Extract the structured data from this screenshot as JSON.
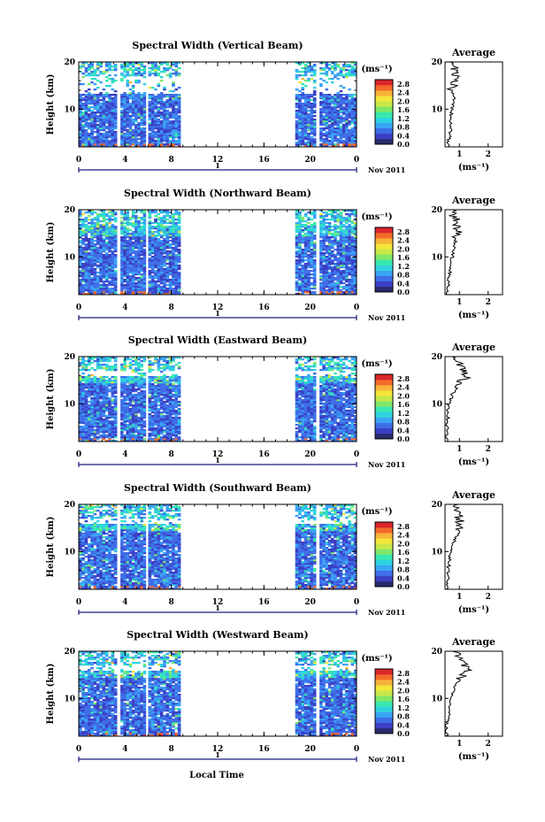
{
  "figure": {
    "xlabel": "Local Time",
    "ylabel": "Height (km)",
    "date_label": "Nov 2011",
    "day_label": "1",
    "cb_unit": "(ms⁻¹)",
    "avg_title": "Average",
    "avg_xlabel": "(ms⁻¹)",
    "x_ticks": [
      "0",
      "4",
      "8",
      "12",
      "16",
      "20",
      "0"
    ],
    "y_ticks": [
      "20",
      "10"
    ],
    "cb_ticks": [
      "2.8",
      "2.4",
      "2.0",
      "1.6",
      "1.2",
      "0.8",
      "0.4",
      "0.0"
    ],
    "avg_x_ticks": [
      "1",
      "2"
    ],
    "colormap": [
      "#2a2a6e",
      "#3b3fc4",
      "#3f6ee8",
      "#3aa5f5",
      "#2fd3e0",
      "#38e8b0",
      "#7fe86a",
      "#c8e84a",
      "#f5e63a",
      "#f7b33a",
      "#f46a2a",
      "#d9262a"
    ]
  },
  "chart_data": [
    {
      "type": "heatmap",
      "title": "Spectral Width (Vertical Beam)",
      "xlabel": "Local Time",
      "ylabel": "Height (km)",
      "colorbar_label": "(ms⁻¹)",
      "x_range_hours": [
        0,
        24
      ],
      "y_range_km": [
        2,
        20
      ],
      "color_range": [
        0.0,
        3.0
      ],
      "data_gaps_hours": [
        [
          3.3,
          3.6
        ],
        [
          5.8,
          6.0
        ],
        [
          8.8,
          18.7
        ],
        [
          20.5,
          20.8
        ]
      ],
      "average_profile": {
        "title": "Average",
        "xlabel": "(ms⁻¹)",
        "xlim": [
          0.5,
          2.5
        ],
        "height_km": [
          2,
          4,
          6,
          8,
          10,
          12,
          14,
          16,
          18,
          20
        ],
        "width": [
          0.6,
          0.65,
          0.7,
          0.7,
          0.75,
          0.8,
          0.75,
          0.8,
          0.85,
          0.8
        ]
      }
    },
    {
      "type": "heatmap",
      "title": "Spectral Width (Northward Beam)",
      "xlabel": "Local Time",
      "ylabel": "Height (km)",
      "colorbar_label": "(ms⁻¹)",
      "x_range_hours": [
        0,
        24
      ],
      "y_range_km": [
        2,
        20
      ],
      "color_range": [
        0.0,
        3.0
      ],
      "data_gaps_hours": [
        [
          3.3,
          3.6
        ],
        [
          5.8,
          6.0
        ],
        [
          8.8,
          18.7
        ],
        [
          20.5,
          20.8
        ]
      ],
      "average_profile": {
        "title": "Average",
        "xlabel": "(ms⁻¹)",
        "xlim": [
          0.5,
          2.5
        ],
        "height_km": [
          2,
          4,
          6,
          8,
          10,
          12,
          14,
          16,
          18,
          20
        ],
        "width": [
          0.55,
          0.6,
          0.65,
          0.7,
          0.75,
          0.8,
          0.9,
          0.95,
          0.85,
          0.75
        ]
      }
    },
    {
      "type": "heatmap",
      "title": "Spectral Width (Eastward Beam)",
      "xlabel": "Local Time",
      "ylabel": "Height (km)",
      "colorbar_label": "(ms⁻¹)",
      "x_range_hours": [
        0,
        24
      ],
      "y_range_km": [
        2,
        20
      ],
      "color_range": [
        0.0,
        3.0
      ],
      "data_gaps_hours": [
        [
          3.3,
          3.6
        ],
        [
          5.8,
          6.0
        ],
        [
          8.8,
          18.7
        ],
        [
          20.5,
          20.8
        ]
      ],
      "average_profile": {
        "title": "Average",
        "xlabel": "(ms⁻¹)",
        "xlim": [
          0.5,
          2.5
        ],
        "height_km": [
          2,
          4,
          6,
          8,
          10,
          12,
          14,
          16,
          18,
          20
        ],
        "width": [
          0.55,
          0.55,
          0.6,
          0.6,
          0.65,
          0.75,
          0.95,
          1.3,
          1.0,
          0.8
        ]
      }
    },
    {
      "type": "heatmap",
      "title": "Spectral Width (Southward Beam)",
      "xlabel": "Local Time",
      "ylabel": "Height (km)",
      "colorbar_label": "(ms⁻¹)",
      "x_range_hours": [
        0,
        24
      ],
      "y_range_km": [
        2,
        20
      ],
      "color_range": [
        0.0,
        3.0
      ],
      "data_gaps_hours": [
        [
          3.3,
          3.6
        ],
        [
          5.8,
          6.0
        ],
        [
          8.8,
          18.7
        ],
        [
          20.5,
          20.8
        ]
      ],
      "average_profile": {
        "title": "Average",
        "xlabel": "(ms⁻¹)",
        "xlim": [
          0.5,
          2.5
        ],
        "height_km": [
          2,
          4,
          6,
          8,
          10,
          12,
          14,
          16,
          18,
          20
        ],
        "width": [
          0.55,
          0.6,
          0.6,
          0.65,
          0.7,
          0.8,
          0.95,
          1.05,
          0.95,
          0.8
        ]
      }
    },
    {
      "type": "heatmap",
      "title": "Spectral Width (Westward Beam)",
      "xlabel": "Local Time",
      "ylabel": "Height (km)",
      "colorbar_label": "(ms⁻¹)",
      "x_range_hours": [
        0,
        24
      ],
      "y_range_km": [
        2,
        20
      ],
      "color_range": [
        0.0,
        3.0
      ],
      "data_gaps_hours": [
        [
          3.3,
          3.6
        ],
        [
          5.8,
          6.0
        ],
        [
          8.8,
          18.7
        ],
        [
          20.5,
          20.8
        ]
      ],
      "average_profile": {
        "title": "Average",
        "xlabel": "(ms⁻¹)",
        "xlim": [
          0.5,
          2.5
        ],
        "height_km": [
          2,
          4,
          6,
          8,
          10,
          12,
          14,
          16,
          18,
          20
        ],
        "width": [
          0.55,
          0.55,
          0.6,
          0.65,
          0.7,
          0.8,
          1.0,
          1.3,
          1.1,
          0.8
        ]
      }
    }
  ]
}
